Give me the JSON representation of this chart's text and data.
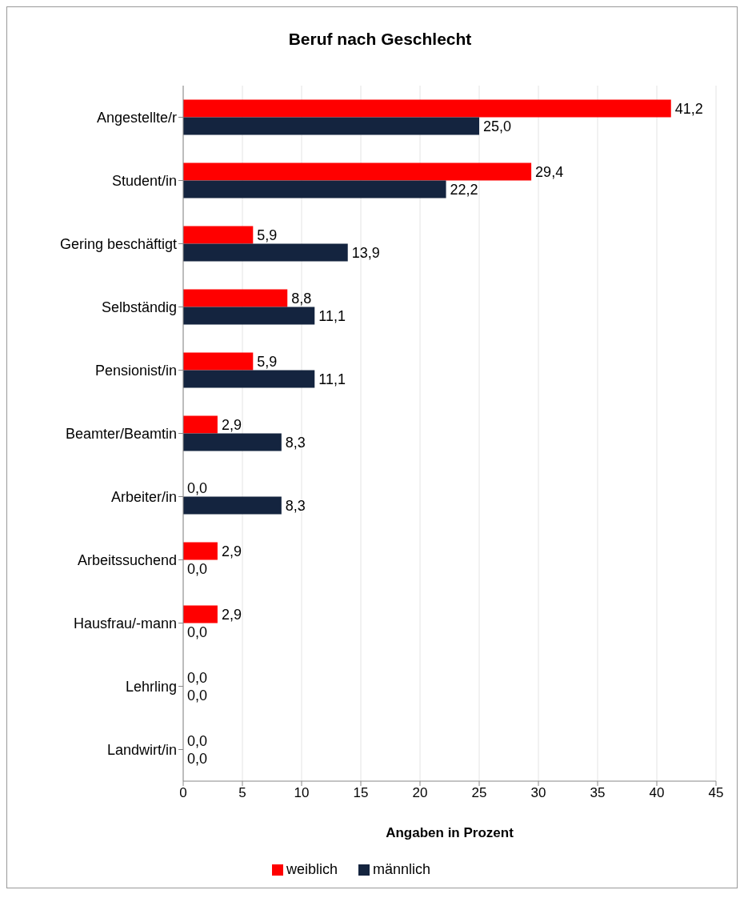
{
  "chart_data": {
    "type": "bar",
    "orientation": "horizontal",
    "title": "Beruf nach Geschlecht",
    "xlabel": "Angaben in Prozent",
    "categories": [
      "Angestellte/r",
      "Student/in",
      "Gering beschäftigt",
      "Selbständig",
      "Pensionist/in",
      "Beamter/Beamtin",
      "Arbeiter/in",
      "Arbeitssuchend",
      "Hausfrau/-mann",
      "Lehrling",
      "Landwirt/in"
    ],
    "series": [
      {
        "name": "weiblich",
        "color": "#ff0000",
        "values": [
          41.2,
          29.4,
          5.9,
          8.8,
          5.9,
          2.9,
          0,
          2.9,
          2.9,
          0,
          0
        ],
        "value_labels": [
          "41,2",
          "29,4",
          "5,9",
          "8,8",
          "5,9",
          "2,9",
          "0,0",
          "2,9",
          "2,9",
          "0,0",
          "0,0"
        ]
      },
      {
        "name": "männlich",
        "color": "#14243f",
        "values": [
          25.0,
          22.2,
          13.9,
          11.1,
          11.1,
          8.3,
          8.3,
          0,
          0,
          0,
          0
        ],
        "value_labels": [
          "25,0",
          "22,2",
          "13,9",
          "11,1",
          "11,1",
          "8,3",
          "8,3",
          "0,0",
          "0,0",
          "0,0",
          "0,0"
        ]
      }
    ],
    "xlim": [
      0,
      45
    ],
    "xticks": [
      0,
      5,
      10,
      15,
      20,
      25,
      30,
      35,
      40,
      45
    ],
    "grid": "x",
    "legend": "bottom"
  }
}
